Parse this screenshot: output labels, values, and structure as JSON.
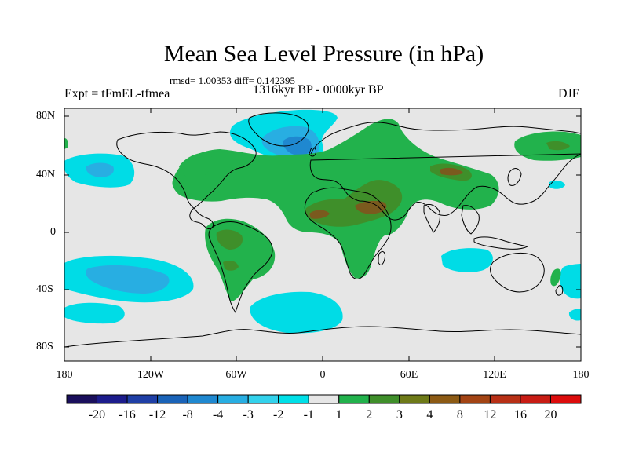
{
  "title": "Mean Sea Level Pressure (in hPa)",
  "stats_line": "rmsd= 1.00353 diff= 0.142395",
  "period_label": "1316kyr BP - 0000kyr BP",
  "experiment_label": "Expt = tFmEL-tfmea",
  "season_label": "DJF",
  "lat_labels": [
    "80N",
    "40N",
    "0",
    "40S",
    "80S"
  ],
  "lon_labels": [
    "180",
    "120W",
    "60W",
    "0",
    "60E",
    "120E",
    "180"
  ],
  "colorbar": {
    "labels": [
      "-20",
      "-16",
      "-12",
      "-8",
      "-4",
      "-3",
      "-2",
      "-1",
      "1",
      "2",
      "3",
      "4",
      "8",
      "12",
      "16",
      "20"
    ],
    "colors": [
      "#1a0f5c",
      "#1c1c8c",
      "#1f3fa6",
      "#1a63b8",
      "#1f88d0",
      "#28aee2",
      "#33d2ec",
      "#00e0e8",
      "#e6e6e6",
      "#22b24c",
      "#3f8f2a",
      "#6e7a18",
      "#8c5a14",
      "#a34414",
      "#b83016",
      "#c81c14",
      "#dc0c0c"
    ]
  },
  "colors": {
    "background": "#e6e6e6",
    "neg_light": "#00dce6",
    "neg_mid": "#28aee2",
    "neg_dark": "#1a63b8",
    "pos_light": "#22b24c",
    "pos_mid": "#3f8f2a",
    "pos_dark": "#7a5a1e"
  }
}
